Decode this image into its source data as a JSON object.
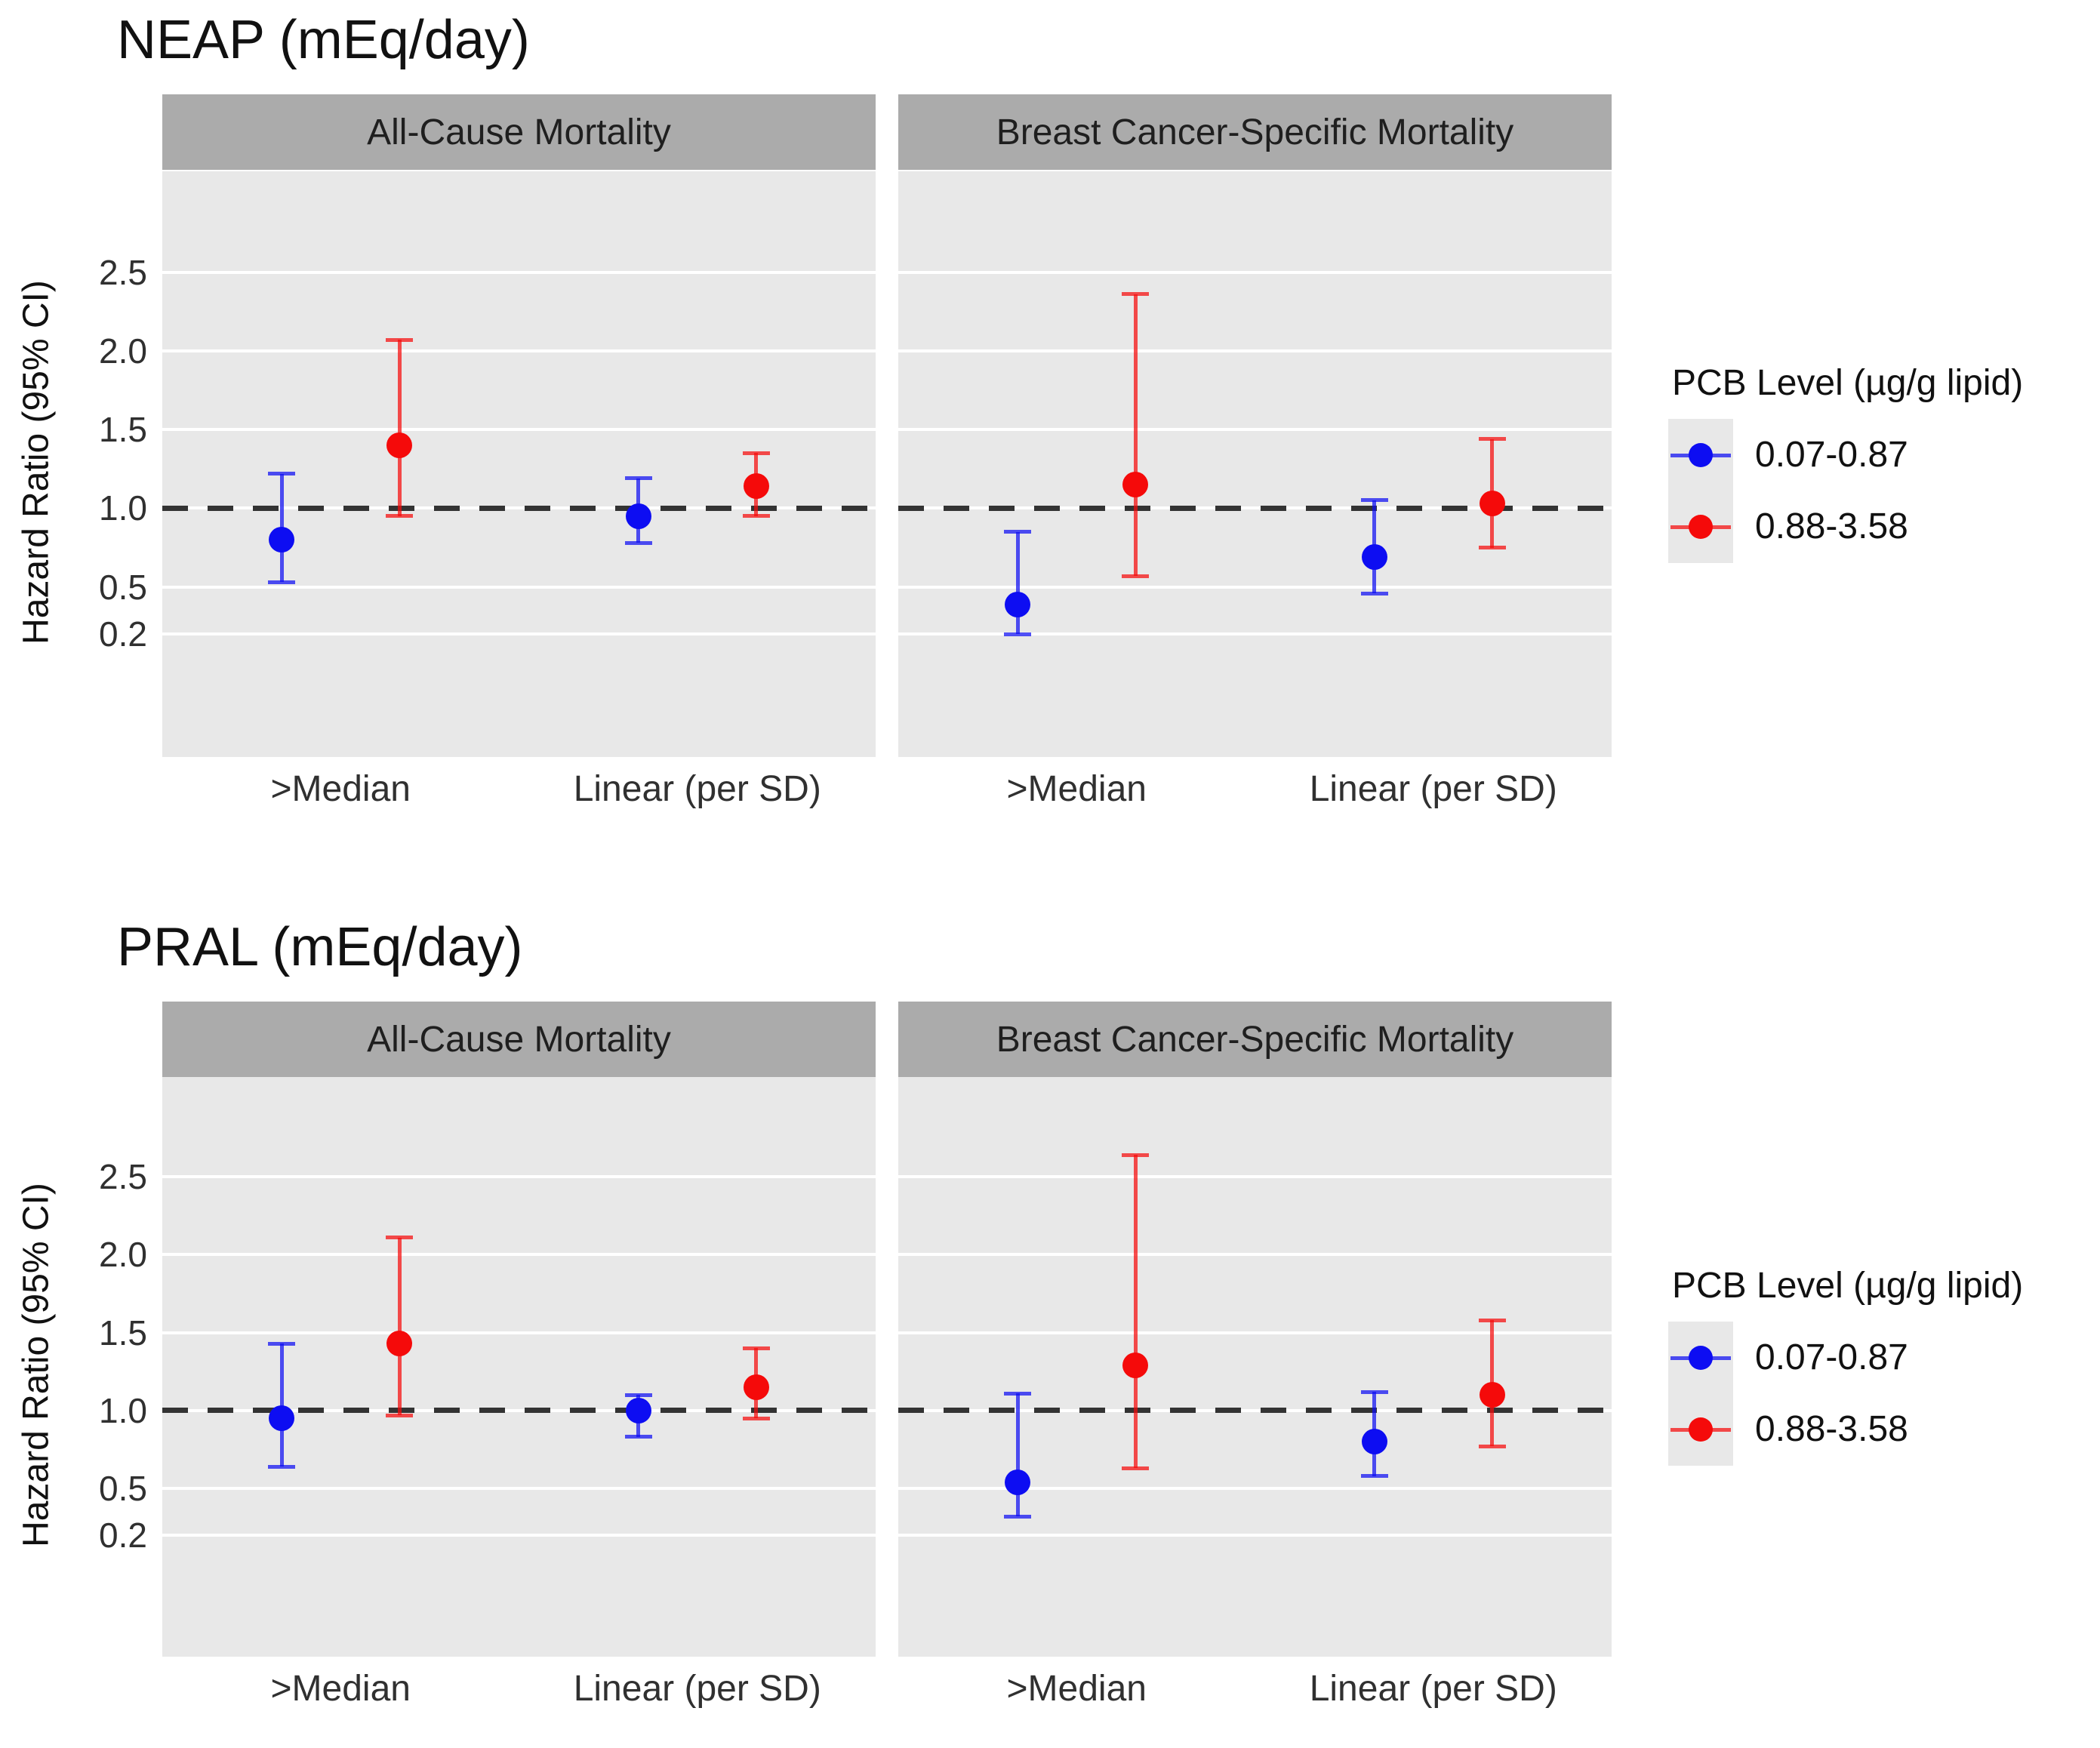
{
  "chart_data": [
    {
      "type": "errorbar",
      "title": "NEAP (mEq/day)",
      "ylabel": "Hazard Ratio (95% CI)",
      "yticks": [
        2.5,
        2.0,
        1.5,
        1.0,
        0.5,
        0.2
      ],
      "ylim": [
        -0.58,
        3.14
      ],
      "ref_line": 1.0,
      "grid": "on",
      "categories": [
        ">Median",
        "Linear (per SD)"
      ],
      "facets": [
        {
          "label": "All-Cause Mortality",
          "series": [
            {
              "name": "0.07-0.87",
              "color": "#0D0DF2",
              "values": [
                {
                  "x": ">Median",
                  "hr": 0.8,
                  "lo": 0.53,
                  "hi": 1.22
                },
                {
                  "x": "Linear (per SD)",
                  "hr": 0.95,
                  "lo": 0.78,
                  "hi": 1.19
                }
              ]
            },
            {
              "name": "0.88-3.58",
              "color": "#F50A0A",
              "values": [
                {
                  "x": ">Median",
                  "hr": 1.4,
                  "lo": 0.95,
                  "hi": 2.07
                },
                {
                  "x": "Linear (per SD)",
                  "hr": 1.14,
                  "lo": 0.95,
                  "hi": 1.35
                }
              ]
            }
          ]
        },
        {
          "label": "Breast Cancer-Specific Mortality",
          "series": [
            {
              "name": "0.07-0.87",
              "color": "#0D0DF2",
              "values": [
                {
                  "x": ">Median",
                  "hr": 0.39,
                  "lo": 0.2,
                  "hi": 0.85
                },
                {
                  "x": "Linear (per SD)",
                  "hr": 0.69,
                  "lo": 0.46,
                  "hi": 1.05
                }
              ]
            },
            {
              "name": "0.88-3.58",
              "color": "#F50A0A",
              "values": [
                {
                  "x": ">Median",
                  "hr": 1.15,
                  "lo": 0.57,
                  "hi": 2.36
                },
                {
                  "x": "Linear (per SD)",
                  "hr": 1.03,
                  "lo": 0.75,
                  "hi": 1.44
                }
              ]
            }
          ]
        }
      ]
    },
    {
      "type": "errorbar",
      "title": "PRAL (mEq/day)",
      "ylabel": "Hazard Ratio (95% CI)",
      "yticks": [
        2.5,
        2.0,
        1.5,
        1.0,
        0.5,
        0.2
      ],
      "ylim": [
        -0.58,
        3.14
      ],
      "ref_line": 1.0,
      "grid": "on",
      "categories": [
        ">Median",
        "Linear (per SD)"
      ],
      "facets": [
        {
          "label": "All-Cause Mortality",
          "series": [
            {
              "name": "0.07-0.87",
              "color": "#0D0DF2",
              "values": [
                {
                  "x": ">Median",
                  "hr": 0.95,
                  "lo": 0.64,
                  "hi": 1.43
                },
                {
                  "x": "Linear (per SD)",
                  "hr": 1.0,
                  "lo": 0.83,
                  "hi": 1.1
                }
              ]
            },
            {
              "name": "0.88-3.58",
              "color": "#F50A0A",
              "values": [
                {
                  "x": ">Median",
                  "hr": 1.43,
                  "lo": 0.97,
                  "hi": 2.11
                },
                {
                  "x": "Linear (per SD)",
                  "hr": 1.15,
                  "lo": 0.95,
                  "hi": 1.4
                }
              ]
            }
          ]
        },
        {
          "label": "Breast Cancer-Specific Mortality",
          "series": [
            {
              "name": "0.07-0.87",
              "color": "#0D0DF2",
              "values": [
                {
                  "x": ">Median",
                  "hr": 0.54,
                  "lo": 0.32,
                  "hi": 1.11
                },
                {
                  "x": "Linear (per SD)",
                  "hr": 0.8,
                  "lo": 0.58,
                  "hi": 1.12
                }
              ]
            },
            {
              "name": "0.88-3.58",
              "color": "#F50A0A",
              "values": [
                {
                  "x": ">Median",
                  "hr": 1.29,
                  "lo": 0.63,
                  "hi": 2.64
                },
                {
                  "x": "Linear (per SD)",
                  "hr": 1.1,
                  "lo": 0.77,
                  "hi": 1.58
                }
              ]
            }
          ]
        }
      ]
    }
  ],
  "legend": {
    "title": "PCB Level (µg/g lipid)",
    "position": "right",
    "entries": [
      {
        "label": "0.07-0.87",
        "color": "#0D0DF2"
      },
      {
        "label": "0.88-3.58",
        "color": "#F50A0A"
      }
    ]
  },
  "style": {
    "panel_bg": "#E8E8E8",
    "strip_bg": "#ABABAB",
    "gridline_color": "#FFFFFF",
    "ref_line_color": "#333333",
    "whisker_opacity": 0.72
  }
}
